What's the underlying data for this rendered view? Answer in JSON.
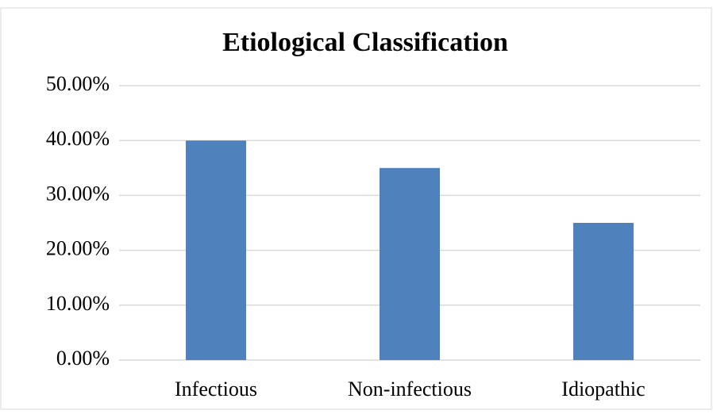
{
  "chart_data": {
    "type": "bar",
    "title": "Etiological Classification",
    "categories": [
      "Infectious",
      "Non-infectious",
      "Idiopathic"
    ],
    "values": [
      40,
      35,
      25
    ],
    "color": "#4f81bd",
    "ylim": [
      0,
      50
    ],
    "yticks": [
      {
        "value": 0,
        "label": "0.00%"
      },
      {
        "value": 10,
        "label": "10.00%"
      },
      {
        "value": 20,
        "label": "20.00%"
      },
      {
        "value": 30,
        "label": "30.00%"
      },
      {
        "value": 40,
        "label": "40.00%"
      },
      {
        "value": 50,
        "label": "50.00%"
      }
    ],
    "grid": true
  }
}
